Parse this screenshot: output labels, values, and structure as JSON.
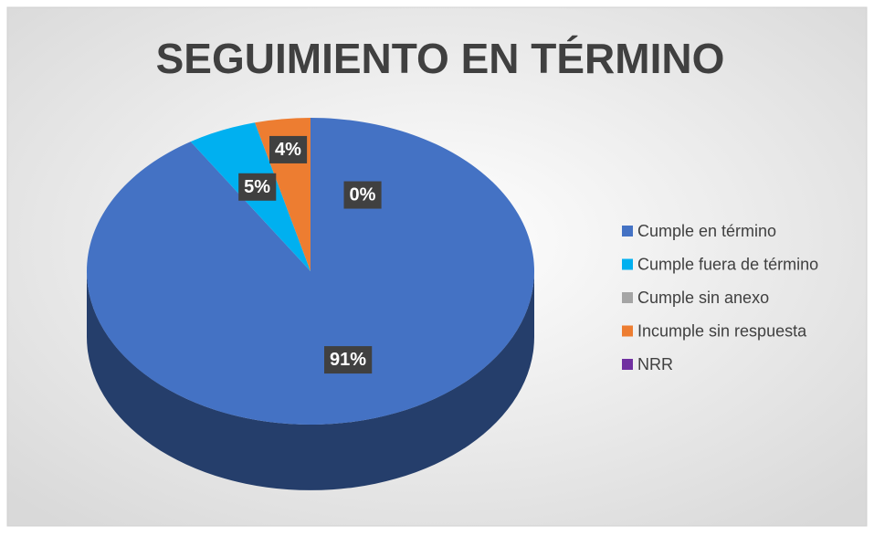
{
  "chart_data": {
    "type": "pie",
    "title": "SEGUIMIENTO EN TÉRMINO",
    "categories": [
      "Cumple en término",
      "Cumple fuera de término",
      "Cumple sin anexo",
      "Incumple sin respuesta",
      "NRR"
    ],
    "values": [
      91,
      5,
      0,
      4,
      0
    ],
    "value_labels": [
      "91%",
      "5%",
      null,
      "4%",
      "0%"
    ],
    "colors": [
      "#4472c4",
      "#00b0f0",
      "#a5a5a5",
      "#ed7d31",
      "#7030a0"
    ],
    "legend": "right"
  }
}
